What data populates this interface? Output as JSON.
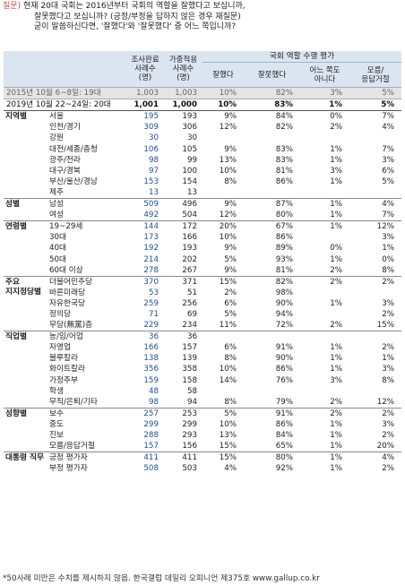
{
  "question": {
    "label": "질문)",
    "lines": [
      "현재 20대 국회는 2016년부터 국회의 역할을 잘했다고 보십니까,",
      "잘못했다고 보십니까? (긍정/부정을 답하지 않은 경우 재질문)",
      "굳이 말씀하신다면, '잘했다'와 '잘못했다' 중 어느 쪽입니까?"
    ]
  },
  "header": {
    "col_survey": [
      "조사완료",
      "사례수",
      "(명)"
    ],
    "col_weighted": [
      "가중적용",
      "사례수",
      "(명)"
    ],
    "eval_title": "국회 역할 수행 평가",
    "col_good": "잘했다",
    "col_bad": "잘못했다",
    "col_neither": [
      "어느 쪽도",
      "아니다"
    ],
    "col_dk": [
      "모름/",
      "응답거절"
    ]
  },
  "prev_row": {
    "label": "2015년 10월 6~8일: 19대",
    "n": "1,003",
    "w": "1,003",
    "good": "10%",
    "bad": "82%",
    "neither": "3%",
    "dk": "5%"
  },
  "now_row": {
    "label": "2019년 10월 22~24일: 20대",
    "n": "1,001",
    "w": "1,000",
    "good": "10%",
    "bad": "83%",
    "neither": "1%",
    "dk": "5%"
  },
  "groups": [
    {
      "name": "지역별",
      "rows": [
        [
          "서울",
          "195",
          "193",
          "9%",
          "84%",
          "0%",
          "7%"
        ],
        [
          "인천/경기",
          "309",
          "306",
          "12%",
          "82%",
          "2%",
          "4%"
        ],
        [
          "강원",
          "30",
          "30",
          "",
          "",
          "",
          ""
        ],
        [
          "대전/세종/충청",
          "106",
          "105",
          "9%",
          "83%",
          "1%",
          "7%"
        ],
        [
          "광주/전라",
          "98",
          "99",
          "13%",
          "83%",
          "1%",
          "3%"
        ],
        [
          "대구/경북",
          "97",
          "100",
          "10%",
          "81%",
          "3%",
          "6%"
        ],
        [
          "부산/울산/경남",
          "153",
          "154",
          "8%",
          "86%",
          "1%",
          "5%"
        ],
        [
          "제주",
          "13",
          "13",
          "",
          "",
          "",
          ""
        ]
      ]
    },
    {
      "name": "성별",
      "rows": [
        [
          "남성",
          "509",
          "496",
          "9%",
          "87%",
          "1%",
          "4%"
        ],
        [
          "여성",
          "492",
          "504",
          "12%",
          "80%",
          "1%",
          "7%"
        ]
      ]
    },
    {
      "name": "연령별",
      "rows": [
        [
          "19~29세",
          "144",
          "172",
          "20%",
          "67%",
          "1%",
          "12%"
        ],
        [
          "30대",
          "173",
          "166",
          "10%",
          "86%",
          "",
          "3%"
        ],
        [
          "40대",
          "192",
          "193",
          "9%",
          "89%",
          "0%",
          "1%"
        ],
        [
          "50대",
          "214",
          "202",
          "5%",
          "93%",
          "1%",
          "0%"
        ],
        [
          "60대 이상",
          "278",
          "267",
          "9%",
          "81%",
          "2%",
          "8%"
        ]
      ]
    },
    {
      "name": "주요\n지지정당별",
      "rows": [
        [
          "더불어민주당",
          "370",
          "371",
          "15%",
          "82%",
          "2%",
          "2%"
        ],
        [
          "바른미래당",
          "53",
          "51",
          "2%",
          "98%",
          "",
          ""
        ],
        [
          "자유한국당",
          "259",
          "256",
          "6%",
          "90%",
          "1%",
          "3%"
        ],
        [
          "정의당",
          "71",
          "69",
          "5%",
          "94%",
          "",
          "2%"
        ],
        [
          "무당(無黨)층",
          "229",
          "234",
          "11%",
          "72%",
          "2%",
          "15%"
        ]
      ]
    },
    {
      "name": "직업별",
      "rows": [
        [
          "농/임/어업",
          "36",
          "36",
          "",
          "",
          "",
          ""
        ],
        [
          "자영업",
          "166",
          "157",
          "6%",
          "91%",
          "1%",
          "2%"
        ],
        [
          "블루칼라",
          "138",
          "139",
          "8%",
          "90%",
          "1%",
          "1%"
        ],
        [
          "화이트칼라",
          "356",
          "358",
          "10%",
          "86%",
          "1%",
          "3%"
        ],
        [
          "가정주부",
          "159",
          "158",
          "14%",
          "76%",
          "3%",
          "8%"
        ],
        [
          "학생",
          "48",
          "58",
          "",
          "",
          "",
          ""
        ],
        [
          "무직/은퇴/기타",
          "98",
          "94",
          "8%",
          "79%",
          "2%",
          "12%"
        ]
      ]
    },
    {
      "name": "성향별",
      "rows": [
        [
          "보수",
          "257",
          "253",
          "5%",
          "91%",
          "2%",
          "2%"
        ],
        [
          "중도",
          "299",
          "299",
          "10%",
          "86%",
          "1%",
          "3%"
        ],
        [
          "진보",
          "288",
          "293",
          "13%",
          "84%",
          "1%",
          "2%"
        ],
        [
          "모름/응답거절",
          "157",
          "156",
          "15%",
          "65%",
          "1%",
          "20%"
        ]
      ]
    },
    {
      "name": "대통령 직무",
      "rows": [
        [
          "긍정 평가자",
          "411",
          "411",
          "15%",
          "80%",
          "1%",
          "4%"
        ],
        [
          "부정 평가자",
          "508",
          "503",
          "4%",
          "92%",
          "1%",
          "2%"
        ]
      ]
    }
  ],
  "footnote": "*50사례 미만은 수치를 제시하지 않음. 한국갤럽 데일리 오피니언 제375호 www.gallup.co.kr",
  "colors": {
    "header_bg": "#dbe5f1",
    "prev_row_bg": "#e4e4e4",
    "question_label": "#c0504d",
    "count_text": "#1f4e8c"
  }
}
